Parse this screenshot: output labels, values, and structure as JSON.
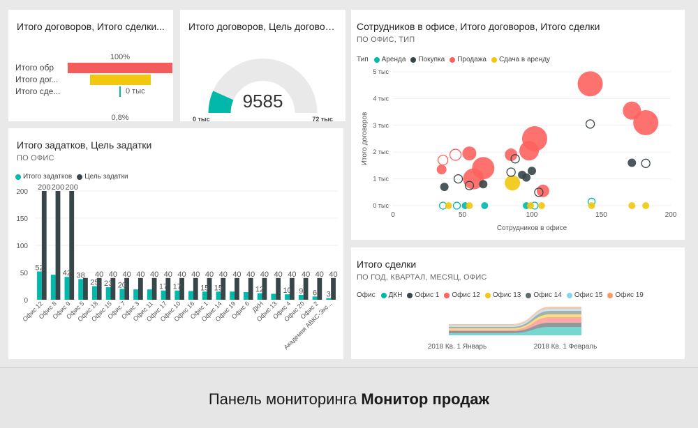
{
  "tiles": {
    "funnel": {
      "title": "Итого договоров, Итого сделки...",
      "top_label": "100%",
      "bottom_label": "0,8%",
      "rows": [
        {
          "label": "Итого обр",
          "fraction": 1.0,
          "color": "#f45b5b"
        },
        {
          "label": "Итого дог...",
          "fraction": 0.58,
          "color": "#f2c80f"
        },
        {
          "label": "Итого сде...",
          "fraction": 0.008,
          "color": "#01b8aa",
          "value_text": "0 тыс"
        }
      ]
    },
    "gauge": {
      "title": "Итого договоров, Цель договоров",
      "value": "9585",
      "min": "0 тыс",
      "max": "72 тыс",
      "fill_fraction": 0.133,
      "fill_color": "#01b8aa",
      "track_color": "#e9e9e9"
    },
    "deposits": {
      "title": "Итого задатков, Цель задатки",
      "subtitle": "ПО ОФИС"
    },
    "scatter": {
      "title": "Сотрудников в офисе, Итого договоров, Итого сделки",
      "subtitle": "ПО ОФИС, ТИП"
    },
    "deals": {
      "title": "Итого сделки",
      "subtitle": "ПО ГОД, КВАРТАЛ, МЕСЯЦ, ОФИС"
    }
  },
  "footer": {
    "prefix": "Панель мониторинга ",
    "bold": "Монитор продаж"
  },
  "chart_data": [
    {
      "type": "bar",
      "legend": [
        {
          "name": "Итого задатков",
          "color": "#01b8aa"
        },
        {
          "name": "Цель задатки",
          "color": "#374649"
        }
      ],
      "categories": [
        "Офис 12",
        "Офис 8",
        "Офис 9",
        "Офис 5",
        "Офис 18",
        "Офис 15",
        "Офис 7",
        "Офис 3",
        "Офис 11",
        "Офис 17",
        "Офис 10",
        "Офис 16",
        "Офис 1",
        "Офис 14",
        "Офис 19",
        "Офис 6",
        "ДКН",
        "Офис 13",
        "Офис 4",
        "Офис 20",
        "Офис 2",
        "Академия АВКС-Экс..."
      ],
      "series": [
        {
          "name": "Итого задатков",
          "values": [
            52,
            46,
            42,
            38,
            25,
            23,
            20,
            19,
            19,
            17,
            17,
            16,
            15,
            15,
            15,
            14,
            12,
            11,
            10,
            9,
            6,
            3
          ]
        },
        {
          "name": "Цель задатки",
          "values": [
            200,
            200,
            200,
            40,
            40,
            40,
            40,
            40,
            40,
            40,
            40,
            40,
            40,
            40,
            40,
            40,
            40,
            40,
            40,
            40,
            40,
            40
          ]
        }
      ],
      "value_labels": [
        [
          "52",
          "200"
        ],
        [
          "",
          "200"
        ],
        [
          "42",
          "200"
        ],
        [
          "38",
          ""
        ],
        [
          "25",
          "40"
        ],
        [
          "23",
          "40"
        ],
        [
          "20",
          "40"
        ],
        [
          "",
          "40"
        ],
        [
          "",
          "40"
        ],
        [
          "17",
          "40"
        ],
        [
          "17",
          "40"
        ],
        [
          "",
          "40"
        ],
        [
          "15",
          "40"
        ],
        [
          "15",
          "40"
        ],
        [
          "",
          "40"
        ],
        [
          "",
          "40"
        ],
        [
          "12",
          "40"
        ],
        [
          "",
          "40"
        ],
        [
          "10",
          "40"
        ],
        [
          "9",
          "40"
        ],
        [
          "6",
          "40"
        ],
        [
          "3",
          "40"
        ]
      ],
      "ylim": [
        0,
        200
      ],
      "yticks": [
        "0",
        "50",
        "100",
        "150",
        "200"
      ]
    },
    {
      "type": "scatter",
      "legend_title": "Тип",
      "legend": [
        {
          "name": "Аренда",
          "color": "#01b8aa"
        },
        {
          "name": "Покупка",
          "color": "#374649"
        },
        {
          "name": "Продажа",
          "color": "#fd625e"
        },
        {
          "name": "Сдача в аренду",
          "color": "#f2c80f"
        }
      ],
      "xlabel": "Сотрудников в офисе",
      "ylabel": "Итого договоров",
      "xlim": [
        0,
        200
      ],
      "ylim": [
        0,
        5000
      ],
      "xticks": [
        "0",
        "50",
        "100",
        "150",
        "200"
      ],
      "yticks": [
        "0 тыс",
        "1 тыс",
        "2 тыс",
        "3 тыс",
        "4 тыс",
        "5 тыс"
      ],
      "points": [
        {
          "x": 142,
          "y": 4550,
          "size": 18,
          "type": "Продажа",
          "filled": true
        },
        {
          "x": 182,
          "y": 3100,
          "size": 18,
          "type": "Продажа",
          "filled": true
        },
        {
          "x": 172,
          "y": 3550,
          "size": 13,
          "type": "Продажа",
          "filled": true
        },
        {
          "x": 102,
          "y": 2500,
          "size": 18,
          "type": "Продажа",
          "filled": true
        },
        {
          "x": 98,
          "y": 2050,
          "size": 14,
          "type": "Продажа",
          "filled": true
        },
        {
          "x": 65,
          "y": 1400,
          "size": 16,
          "type": "Продажа",
          "filled": true
        },
        {
          "x": 58,
          "y": 1000,
          "size": 15,
          "type": "Продажа",
          "filled": true
        },
        {
          "x": 55,
          "y": 1950,
          "size": 10,
          "type": "Продажа",
          "filled": true
        },
        {
          "x": 85,
          "y": 1900,
          "size": 9,
          "type": "Продажа",
          "filled": true
        },
        {
          "x": 45,
          "y": 1900,
          "size": 8,
          "type": "Продажа",
          "filled": false
        },
        {
          "x": 35,
          "y": 1350,
          "size": 7,
          "type": "Продажа",
          "filled": true
        },
        {
          "x": 36,
          "y": 1700,
          "size": 7,
          "type": "Продажа",
          "filled": false
        },
        {
          "x": 108,
          "y": 550,
          "size": 9,
          "type": "Продажа",
          "filled": true
        },
        {
          "x": 86,
          "y": 850,
          "size": 11,
          "type": "Сдача в аренду",
          "filled": true
        },
        {
          "x": 142,
          "y": 3050,
          "size": 6,
          "type": "Покупка",
          "filled": false
        },
        {
          "x": 172,
          "y": 1600,
          "size": 6,
          "type": "Покупка",
          "filled": true
        },
        {
          "x": 182,
          "y": 1580,
          "size": 6,
          "type": "Покупка",
          "filled": false
        },
        {
          "x": 65,
          "y": 800,
          "size": 6,
          "type": "Покупка",
          "filled": true
        },
        {
          "x": 47,
          "y": 1000,
          "size": 6,
          "type": "Покупка",
          "filled": false
        },
        {
          "x": 55,
          "y": 750,
          "size": 6,
          "type": "Покупка",
          "filled": false
        },
        {
          "x": 85,
          "y": 1250,
          "size": 6,
          "type": "Покупка",
          "filled": false
        },
        {
          "x": 100,
          "y": 1300,
          "size": 6,
          "type": "Покупка",
          "filled": true
        },
        {
          "x": 93,
          "y": 1150,
          "size": 6,
          "type": "Покупка",
          "filled": true
        },
        {
          "x": 96,
          "y": 1050,
          "size": 6,
          "type": "Покупка",
          "filled": true
        },
        {
          "x": 37,
          "y": 700,
          "size": 6,
          "type": "Покупка",
          "filled": true
        },
        {
          "x": 105,
          "y": 500,
          "size": 6,
          "type": "Покупка",
          "filled": false
        },
        {
          "x": 88,
          "y": 1750,
          "size": 6,
          "type": "Покупка",
          "filled": false
        },
        {
          "x": 36,
          "y": 0,
          "size": 5,
          "type": "Аренда",
          "filled": false
        },
        {
          "x": 46,
          "y": 0,
          "size": 5,
          "type": "Аренда",
          "filled": false
        },
        {
          "x": 52,
          "y": 0,
          "size": 5,
          "type": "Аренда",
          "filled": true
        },
        {
          "x": 66,
          "y": 0,
          "size": 5,
          "type": "Аренда",
          "filled": true
        },
        {
          "x": 96,
          "y": 0,
          "size": 5,
          "type": "Аренда",
          "filled": true
        },
        {
          "x": 102,
          "y": 0,
          "size": 5,
          "type": "Аренда",
          "filled": false
        },
        {
          "x": 143,
          "y": 150,
          "size": 5,
          "type": "Аренда",
          "filled": false
        },
        {
          "x": 40,
          "y": 0,
          "size": 5,
          "type": "Сдача в аренду",
          "filled": true
        },
        {
          "x": 55,
          "y": 0,
          "size": 5,
          "type": "Сдача в аренду",
          "filled": true
        },
        {
          "x": 99,
          "y": 0,
          "size": 5,
          "type": "Сдача в аренду",
          "filled": true
        },
        {
          "x": 107,
          "y": 0,
          "size": 5,
          "type": "Сдача в аренду",
          "filled": true
        },
        {
          "x": 143,
          "y": 0,
          "size": 5,
          "type": "Сдача в аренду",
          "filled": true
        },
        {
          "x": 172,
          "y": 0,
          "size": 5,
          "type": "Сдача в аренду",
          "filled": true
        },
        {
          "x": 182,
          "y": 0,
          "size": 5,
          "type": "Сдача в аренду",
          "filled": true
        }
      ]
    },
    {
      "type": "area",
      "legend_title": "Офис",
      "legend": [
        {
          "name": "ДКН",
          "color": "#01b8aa"
        },
        {
          "name": "Офис 1",
          "color": "#374649"
        },
        {
          "name": "Офис 12",
          "color": "#fd625e"
        },
        {
          "name": "Офис 13",
          "color": "#f2c80f"
        },
        {
          "name": "Офис 14",
          "color": "#5f6b6d"
        },
        {
          "name": "Офис 15",
          "color": "#8ad4eb"
        },
        {
          "name": "Офис 19",
          "color": "#fe9666"
        }
      ],
      "categories": [
        "2018 Кв. 1 Январь",
        "2018 Кв. 1 Февраль"
      ]
    }
  ]
}
